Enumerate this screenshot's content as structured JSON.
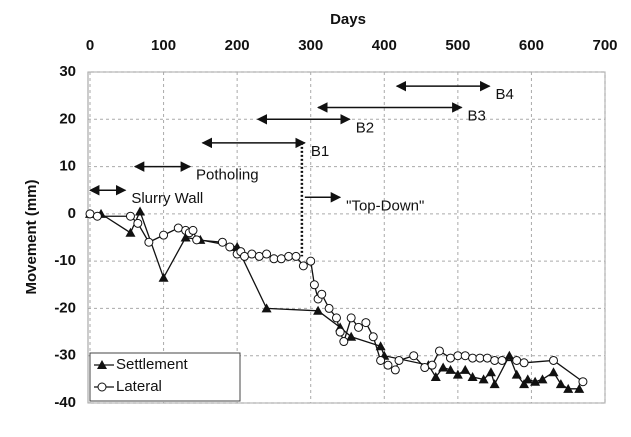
{
  "chart_data": {
    "type": "line",
    "x_label": "Days",
    "y_label": "Movement (mm)",
    "xlim": [
      0,
      700
    ],
    "xticks": [
      0,
      100,
      200,
      300,
      400,
      500,
      600,
      700
    ],
    "ylim": [
      -40,
      30
    ],
    "yticks": [
      -40,
      -30,
      -20,
      -10,
      0,
      10,
      20,
      30
    ],
    "grid": true,
    "legend": "lower left",
    "series": [
      {
        "name": "Settlement",
        "color": "#111111",
        "marker": "triangle",
        "x": [
          0,
          15,
          55,
          68,
          100,
          130,
          150,
          200,
          240,
          310,
          340,
          355,
          395,
          400,
          460,
          470,
          480,
          490,
          500,
          510,
          520,
          535,
          545,
          550,
          570,
          580,
          590,
          595,
          605,
          615,
          630,
          640,
          650,
          665
        ],
        "values": [
          0,
          0,
          -4,
          0.5,
          -13.5,
          -5,
          -5.5,
          -7,
          -20,
          -20.5,
          -24,
          -26,
          -28,
          -30,
          -32,
          -34.5,
          -32.5,
          -33,
          -34,
          -33,
          -34.5,
          -35,
          -33.5,
          -36,
          -30,
          -34,
          -36,
          -35,
          -35.5,
          -35,
          -33.5,
          -36,
          -37,
          -37
        ]
      },
      {
        "name": "Lateral",
        "color": "#111111",
        "marker": "circle",
        "x": [
          0,
          10,
          55,
          65,
          80,
          100,
          120,
          130,
          135,
          140,
          145,
          180,
          190,
          200,
          205,
          210,
          220,
          230,
          240,
          250,
          260,
          270,
          280,
          290,
          300,
          305,
          310,
          315,
          325,
          335,
          340,
          345,
          355,
          365,
          375,
          385,
          395,
          405,
          415,
          420,
          440,
          455,
          465,
          475,
          490,
          500,
          510,
          520,
          530,
          540,
          550,
          560,
          580,
          590,
          630,
          670
        ],
        "values": [
          0,
          -0.5,
          -0.5,
          -2,
          -6,
          -4.5,
          -3,
          -3.5,
          -4,
          -3.5,
          -5.5,
          -6,
          -7,
          -8.5,
          -8,
          -9,
          -8.5,
          -9,
          -8.5,
          -9.5,
          -9.5,
          -9,
          -9,
          -11,
          -10,
          -15,
          -18,
          -17,
          -20,
          -22,
          -25,
          -27,
          -22,
          -24,
          -23,
          -26,
          -31,
          -32,
          -33,
          -31,
          -30,
          -32.5,
          -32,
          -29,
          -30.5,
          -30,
          -30,
          -30.5,
          -30.5,
          -30.5,
          -31,
          -31,
          -31,
          -31.5,
          -31,
          -35.5
        ]
      }
    ],
    "annotations": [
      {
        "text": "Slurry Wall",
        "x": [
          0,
          48
        ],
        "y": 5
      },
      {
        "text": "Potholing",
        "x": [
          61,
          136
        ],
        "y": 10
      },
      {
        "text": "B1",
        "x": [
          153,
          292
        ],
        "y": 15
      },
      {
        "text": "B2",
        "x": [
          228,
          353
        ],
        "y": 20
      },
      {
        "text": "B3",
        "x": [
          310,
          505
        ],
        "y": 22.5
      },
      {
        "text": "B4",
        "x": [
          417,
          543
        ],
        "y": 27
      },
      {
        "text": "\"Top-Down\"",
        "x": [
          292,
          340
        ],
        "y": 3.5,
        "arrow": "single"
      }
    ],
    "reference_line": {
      "x": 288,
      "y": [
        15,
        -9
      ]
    }
  }
}
